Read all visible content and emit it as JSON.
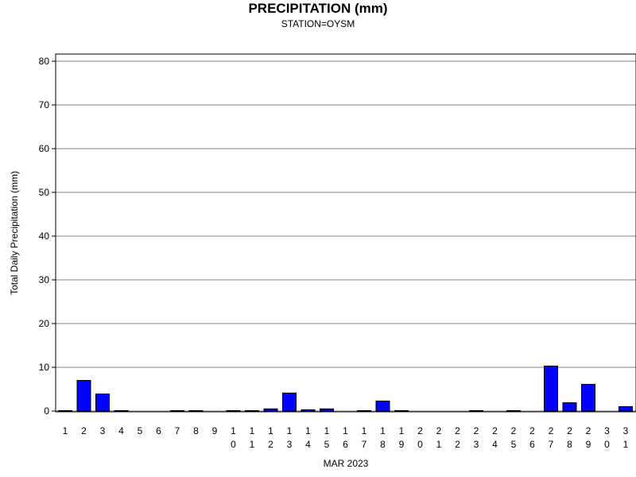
{
  "chart_data": {
    "type": "bar",
    "title": "PRECIPITATION (mm)",
    "subtitle": "STATION=OYSM",
    "xlabel": "MAR 2023",
    "ylabel": "Total Daily Precipitation (mm)",
    "ylim": [
      0,
      80
    ],
    "yticks": [
      "0",
      "10",
      "20",
      "30",
      "40",
      "50",
      "60",
      "70",
      "80"
    ],
    "grid": true,
    "categories": [
      "1",
      "2",
      "3",
      "4",
      "5",
      "6",
      "7",
      "8",
      "9",
      "10",
      "11",
      "12",
      "13",
      "14",
      "15",
      "16",
      "17",
      "18",
      "19",
      "20",
      "21",
      "22",
      "23",
      "24",
      "25",
      "26",
      "27",
      "28",
      "29",
      "30",
      "31"
    ],
    "values": [
      0.1,
      7.0,
      3.9,
      0.1,
      0,
      0,
      0.1,
      0.1,
      0,
      0.1,
      0.1,
      0.5,
      4.1,
      0.3,
      0.5,
      0,
      0.1,
      2.3,
      0.1,
      0,
      0,
      0,
      0.1,
      0,
      0.1,
      0,
      10.3,
      1.9,
      6.1,
      0,
      1.0
    ],
    "bar_color": "#0000ff"
  }
}
